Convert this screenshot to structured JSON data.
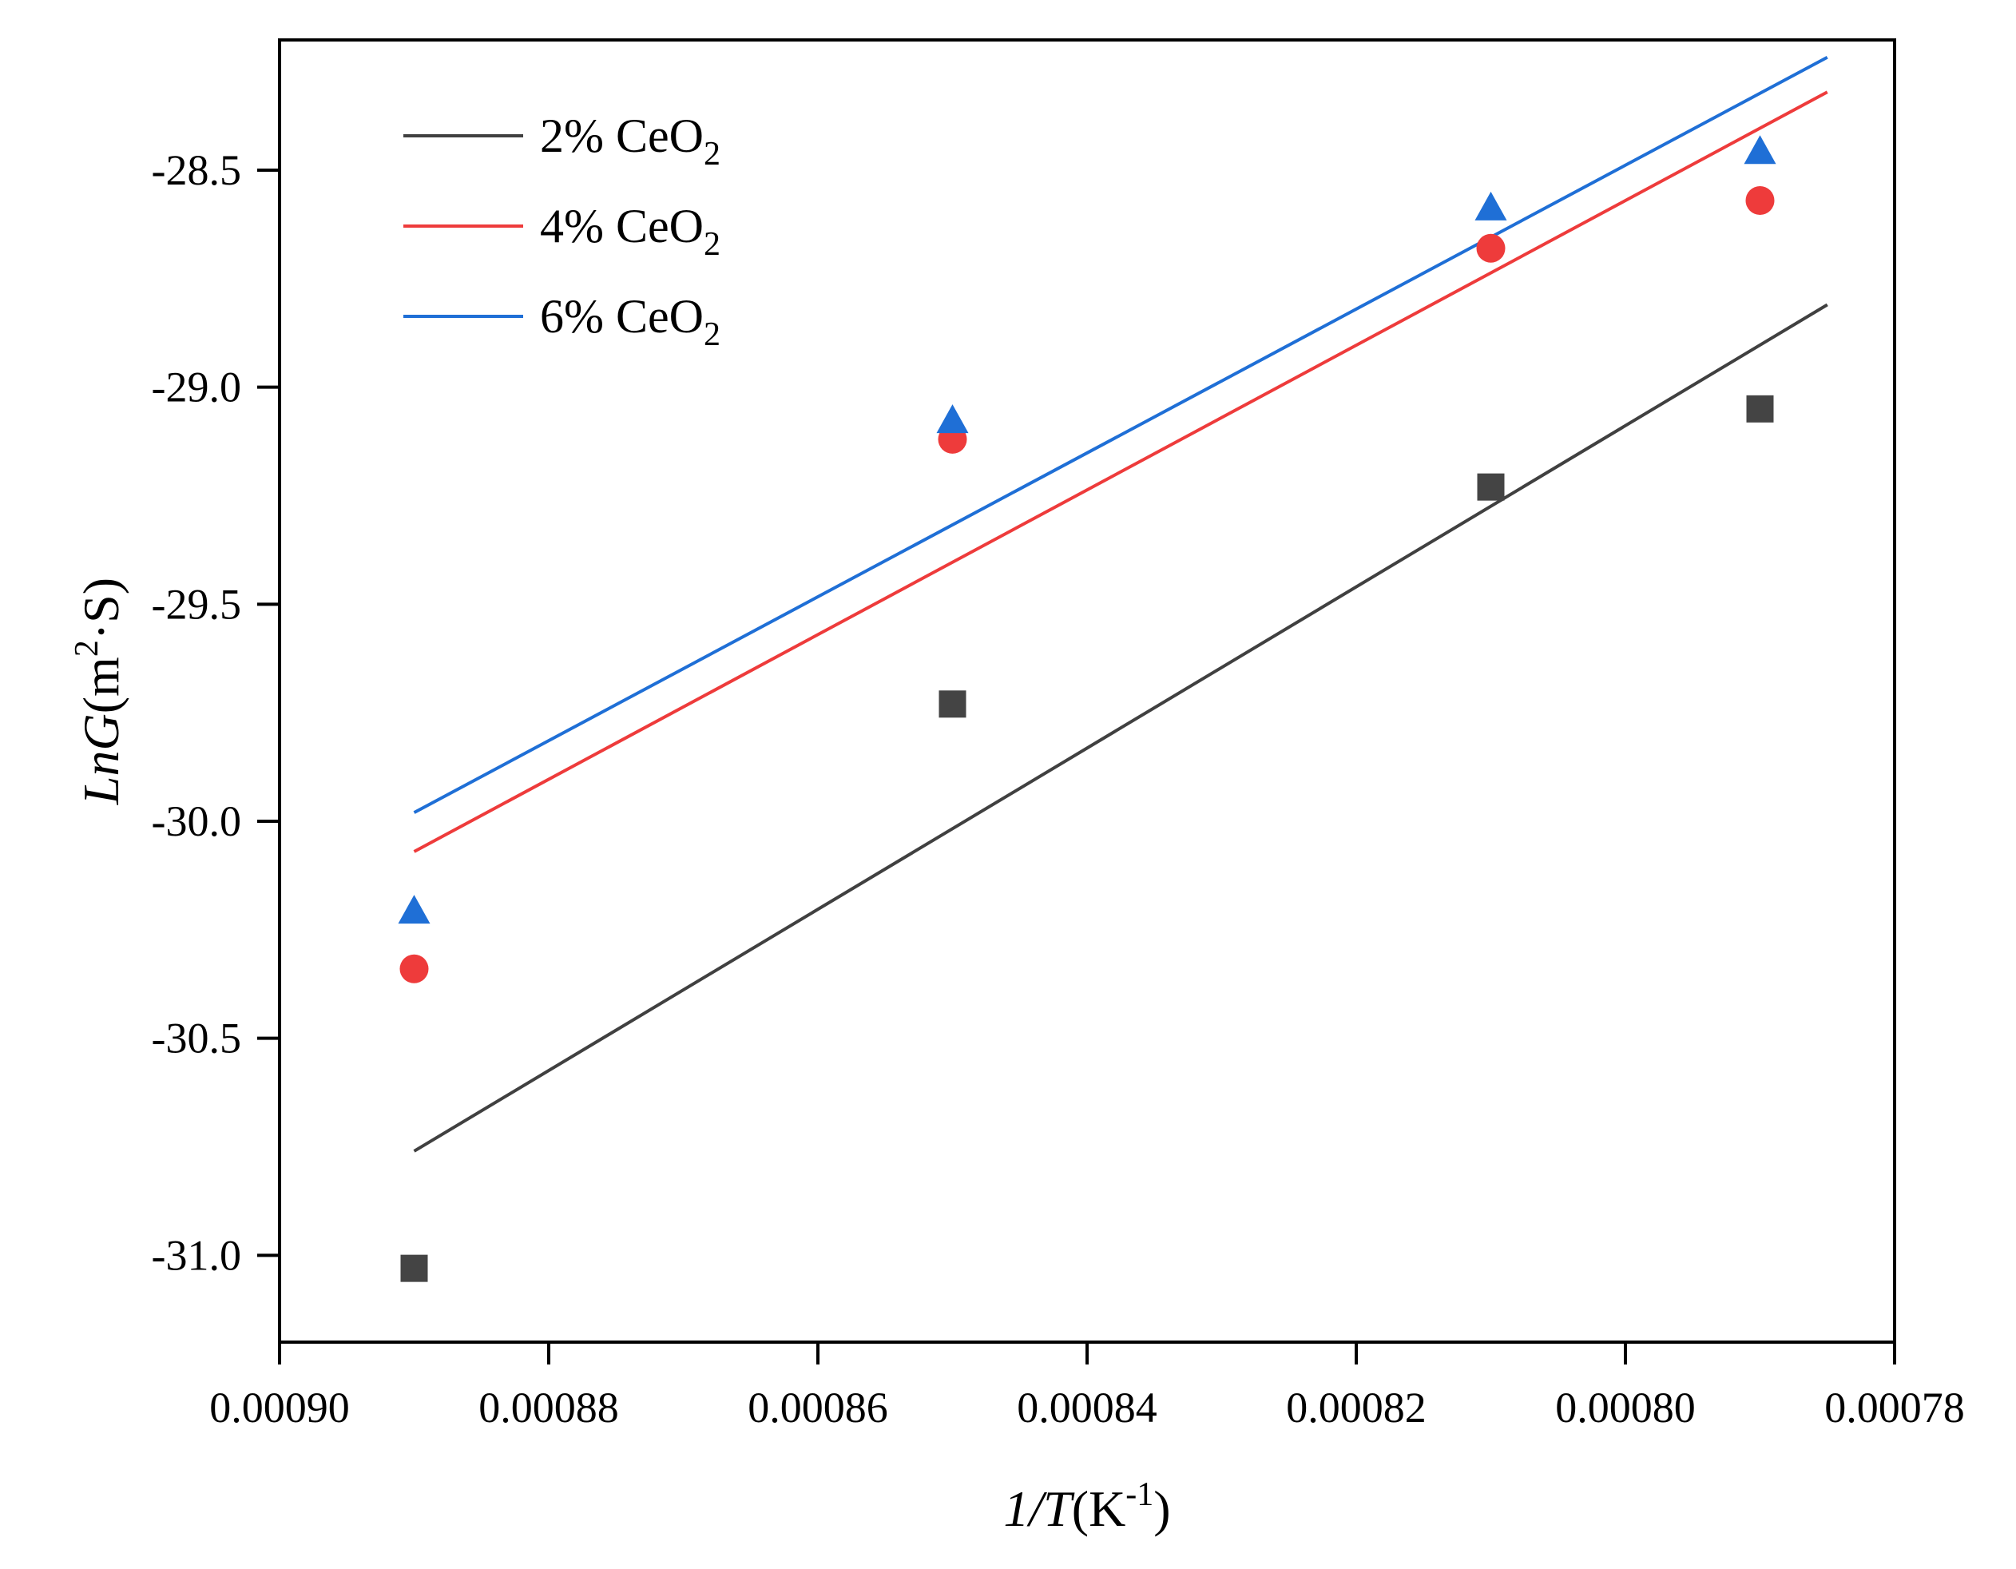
{
  "chart_data": {
    "type": "scatter",
    "xlabel": {
      "italic": "1/T",
      "text": "(K",
      "sup": "-1",
      "close": ")"
    },
    "ylabel": {
      "italic": "LnG",
      "text": "(m",
      "sup": "2",
      "rest": "·S)"
    },
    "xlim": [
      0.0009,
      0.00078
    ],
    "ylim": [
      -31.2,
      -28.2
    ],
    "xticks": [
      0.0009,
      0.00088,
      0.00086,
      0.00084,
      0.00082,
      0.0008,
      0.00078
    ],
    "xtick_labels": [
      "0.00090",
      "0.00088",
      "0.00086",
      "0.00084",
      "0.00082",
      "0.00080",
      "0.00078"
    ],
    "yticks": [
      -28.5,
      -29.0,
      -29.5,
      -30.0,
      -30.5,
      -31.0
    ],
    "ytick_labels": [
      "-28.5",
      "-29.0",
      "-29.5",
      "-30.0",
      "-30.5",
      "-31.0"
    ],
    "legend_position": "top-left",
    "series": [
      {
        "name": "2% CeO2",
        "label_main": "2% CeO",
        "label_sub": "2",
        "color": "#444444",
        "line_color": "#404040",
        "marker": "square",
        "x": [
          0.00089,
          0.00085,
          0.00081,
          0.00079
        ],
        "y": [
          -31.03,
          -29.73,
          -29.23,
          -29.05
        ],
        "fit_x": [
          0.00089,
          0.000785
        ],
        "fit_y": [
          -30.76,
          -28.81
        ]
      },
      {
        "name": "4% CeO2",
        "label_main": "4% CeO",
        "label_sub": "2",
        "color": "#ee3b3b",
        "line_color": "#ee3b3b",
        "marker": "circle",
        "x": [
          0.00089,
          0.00085,
          0.00081,
          0.00079
        ],
        "y": [
          -30.34,
          -29.12,
          -28.68,
          -28.57
        ],
        "fit_x": [
          0.00089,
          0.000785
        ],
        "fit_y": [
          -30.07,
          -28.32
        ]
      },
      {
        "name": "6% CeO2",
        "label_main": "6% CeO",
        "label_sub": "2",
        "color": "#1f6fd6",
        "line_color": "#1f6fd6",
        "marker": "triangle",
        "x": [
          0.00089,
          0.00085,
          0.00081,
          0.00079
        ],
        "y": [
          -30.21,
          -29.08,
          -28.59,
          -28.46
        ],
        "fit_x": [
          0.00089,
          0.000785
        ],
        "fit_y": [
          -29.98,
          -28.24
        ]
      }
    ]
  }
}
